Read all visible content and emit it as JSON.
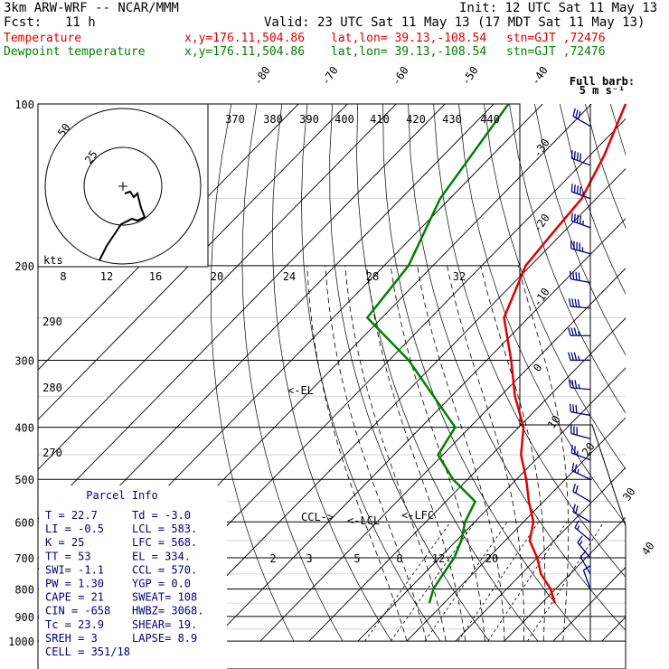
{
  "header": {
    "model": "3km ARW-WRF -- NCAR/MMM",
    "init": "Init: 12 UTC Sat 11 May 13",
    "fcst_label": "Fcst:",
    "fcst_value": "11 h",
    "valid": "Valid: 23 UTC Sat 11 May 13 (17 MDT Sat 11 May 13)",
    "temp_line": {
      "name": "Temperature",
      "xy": "x,y=176.11,504.86",
      "latlon": "lat,lon= 39.13,-108.54",
      "stn": "stn=GJT ,72476"
    },
    "dew_line": {
      "name": "Dewpoint temperature",
      "xy": "x,y=176.11,504.86",
      "latlon": "lat,lon= 39.13,-108.54",
      "stn": "stn=GJT ,72476"
    }
  },
  "colors": {
    "temperature": "#e00000",
    "dewpoint": "#008000",
    "parcel_info": "#000080",
    "lines": "#000000"
  },
  "chart_data": {
    "type": "line",
    "subtype": "skew-T log-p diagram",
    "pressure_ticks": [
      "100",
      "200",
      "300",
      "400",
      "500",
      "600",
      "700",
      "800",
      "900",
      "1000"
    ],
    "skew_temperature_ticks": [
      "-80",
      "-70",
      "-60",
      "-50",
      "-40",
      "-30",
      "-20",
      "-10",
      "0",
      "10",
      "20",
      "30",
      "40"
    ],
    "theta_labels": [
      "370",
      "380",
      "390",
      "400",
      "410",
      "420",
      "430",
      "440"
    ],
    "mixing_ratio_labels": [
      "8",
      "12",
      "16",
      "20",
      "24",
      "28",
      "32",
      "2",
      "3",
      "5",
      "8",
      "12",
      "20"
    ],
    "moist_labels": [
      "290",
      "280",
      "270"
    ],
    "kts_label": "kts",
    "barb_legend": {
      "line1": "Full barb:",
      "line2": "5 m s⁻¹"
    },
    "hodograph": {
      "ring_labels": [
        "25",
        "50"
      ]
    },
    "levels": {
      "el": "<-EL",
      "ccl": "CCL->",
      "lcl": "<-LCL",
      "lfc": "<-LFC"
    },
    "series": [
      {
        "name": "Temperature",
        "p": [
          100,
          125,
          150,
          175,
          200,
          250,
          300,
          350,
          400,
          450,
          500,
          550,
          600,
          650,
          700,
          750,
          800,
          850
        ],
        "t": [
          -63,
          -57,
          -53,
          -52,
          -51,
          -45,
          -35,
          -27,
          -19,
          -14,
          -8,
          -3,
          2,
          5,
          10,
          14,
          19,
          22.7
        ]
      },
      {
        "name": "Dewpoint temperature",
        "p": [
          100,
          150,
          200,
          250,
          300,
          400,
          450,
          500,
          550,
          600,
          650,
          700,
          750,
          800,
          850
        ],
        "t": [
          -87,
          -82,
          -75,
          -73,
          -56,
          -33,
          -31,
          -23,
          -14,
          -12,
          -9,
          -7,
          -6,
          -5,
          -3
        ]
      }
    ],
    "wind_barbs": [
      {
        "p": 110,
        "dir": 300,
        "spd": 6
      },
      {
        "p": 130,
        "dir": 290,
        "spd": 8
      },
      {
        "p": 150,
        "dir": 290,
        "spd": 9
      },
      {
        "p": 170,
        "dir": 290,
        "spd": 9
      },
      {
        "p": 190,
        "dir": 285,
        "spd": 9
      },
      {
        "p": 215,
        "dir": 280,
        "spd": 8
      },
      {
        "p": 240,
        "dir": 275,
        "spd": 8
      },
      {
        "p": 270,
        "dir": 270,
        "spd": 7
      },
      {
        "p": 300,
        "dir": 270,
        "spd": 7
      },
      {
        "p": 340,
        "dir": 275,
        "spd": 7
      },
      {
        "p": 380,
        "dir": 280,
        "spd": 6
      },
      {
        "p": 420,
        "dir": 285,
        "spd": 6
      },
      {
        "p": 460,
        "dir": 290,
        "spd": 5
      },
      {
        "p": 500,
        "dir": 295,
        "spd": 5
      },
      {
        "p": 550,
        "dir": 300,
        "spd": 4
      },
      {
        "p": 600,
        "dir": 300,
        "spd": 4
      },
      {
        "p": 650,
        "dir": 310,
        "spd": 3
      },
      {
        "p": 700,
        "dir": 320,
        "spd": 3
      },
      {
        "p": 750,
        "dir": 330,
        "spd": 2
      },
      {
        "p": 800,
        "dir": 340,
        "spd": 2
      }
    ]
  },
  "parcel_info": {
    "title": "Parcel Info",
    "rows": [
      [
        "T  =    22.7",
        "Td =  -3.0"
      ],
      [
        "LI =    -0.5",
        "LCL =  583."
      ],
      [
        "K  =      25",
        "LFC =  568."
      ],
      [
        "TT =      53",
        "EL  =  334."
      ],
      [
        "SWI=    -1.1",
        "CCL =  570."
      ],
      [
        "PW =    1.30",
        "YGP =   0.0"
      ],
      [
        "CAPE =    21",
        "SWEAT=  108"
      ],
      [
        "CIN =   -658",
        "HWBZ= 3068."
      ],
      [
        "Tc =    23.9",
        "SHEAR=  19."
      ],
      [
        "SREH =     3",
        "LAPSE=  8.9"
      ],
      [
        "CELL = 351/18",
        ""
      ]
    ]
  }
}
